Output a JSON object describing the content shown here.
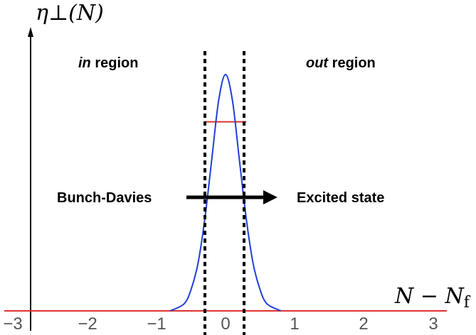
{
  "chart_data": {
    "type": "line",
    "xlabel": "N − N_f",
    "ylabel": "η⊥(N)",
    "xlim": [
      -3,
      3
    ],
    "xticks": [
      "−3",
      "−2",
      "−1",
      "0",
      "1",
      "2",
      "3"
    ],
    "yticks": [],
    "grid": false,
    "series": [
      {
        "color": "#1f3fd6",
        "x": [
          -0.8,
          -0.6,
          -0.5,
          -0.4,
          -0.3,
          -0.2,
          -0.1,
          0.0,
          0.1,
          0.2,
          0.3,
          0.4,
          0.5,
          0.6,
          0.8
        ],
        "y": [
          0.0,
          0.03,
          0.09,
          0.2,
          0.39,
          0.64,
          0.89,
          1.0,
          0.89,
          0.64,
          0.39,
          0.2,
          0.09,
          0.03,
          0.0
        ]
      }
    ],
    "reference_lines": [
      {
        "orientation": "horizontal",
        "color": "#e03030",
        "y": 0.0,
        "x_range": [
          -3,
          3
        ]
      },
      {
        "orientation": "horizontal",
        "color": "#e03030",
        "y": 0.8,
        "x_range": [
          -0.3,
          0.3
        ]
      }
    ],
    "vertical_markers": [
      {
        "x": -0.3,
        "style": "dotted",
        "color": "#000000"
      },
      {
        "x": 0.3,
        "style": "dotted",
        "color": "#000000"
      }
    ],
    "annotations": {
      "in_region": {
        "italic": "in",
        "rest": "region"
      },
      "out_region": {
        "italic": "out",
        "rest": "region"
      },
      "left_state": "Bunch-Davies",
      "right_state": "Excited state"
    },
    "arrow": {
      "from_x": -0.6,
      "to_x": 0.75,
      "color": "#000000"
    }
  }
}
